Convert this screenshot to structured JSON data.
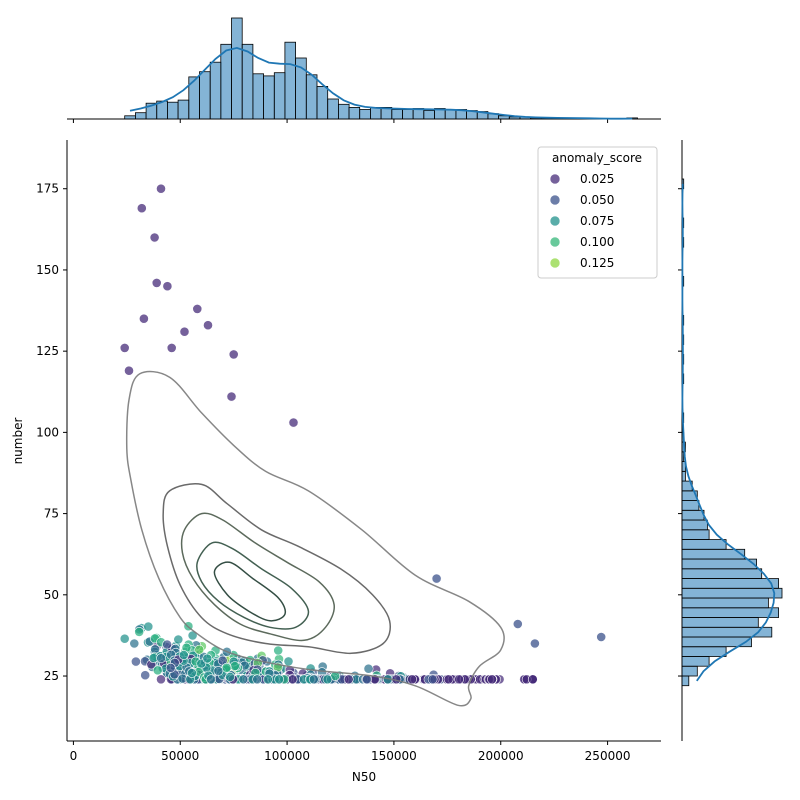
{
  "chart_data": {
    "type": "scatter",
    "xlabel": "N50",
    "ylabel": "number",
    "xlim": [
      -3000,
      275000
    ],
    "ylim": [
      5,
      190
    ],
    "x_ticks": [
      0,
      50000,
      100000,
      150000,
      200000,
      250000
    ],
    "x_tick_labels": [
      "0",
      "50000",
      "100000",
      "150000",
      "200000",
      "250000"
    ],
    "y_ticks": [
      25,
      50,
      75,
      100,
      125,
      150,
      175
    ],
    "y_tick_labels": [
      "25",
      "50",
      "75",
      "100",
      "125",
      "150",
      "175"
    ],
    "grid": false,
    "legend": {
      "title": "anomaly_score",
      "placement": "top-right",
      "entries": [
        {
          "label": "0.025",
          "color": "#472c7a"
        },
        {
          "label": "0.050",
          "color": "#3b528b"
        },
        {
          "label": "0.075",
          "color": "#21918c"
        },
        {
          "label": "0.100",
          "color": "#35b779"
        },
        {
          "label": "0.125",
          "color": "#90d743"
        }
      ]
    },
    "colormap": "viridis",
    "marginal_x_histogram": {
      "bin_edges_start": 24000,
      "bin_width": 5000,
      "counts": [
        3,
        6,
        15,
        17,
        16,
        18,
        40,
        45,
        54,
        71,
        96,
        71,
        43,
        41,
        44,
        73,
        58,
        42,
        31,
        19,
        14,
        11,
        9,
        11,
        11,
        9,
        9,
        10,
        8,
        10,
        9,
        9,
        8,
        7,
        5,
        3,
        2,
        2,
        1,
        1,
        1,
        1,
        1,
        1,
        0,
        0,
        0,
        1
      ]
    },
    "marginal_y_histogram": {
      "bin_edges_start": 22,
      "bin_width": 3,
      "counts": [
        4,
        9,
        16,
        26,
        41,
        53,
        45,
        57,
        51,
        59,
        57,
        47,
        44,
        37,
        26,
        16,
        15,
        13,
        10,
        9,
        6,
        2,
        2,
        1,
        2,
        1,
        0,
        1,
        0,
        0,
        0,
        1,
        0,
        1,
        0,
        1,
        0,
        1,
        0,
        0,
        0,
        1,
        0,
        0,
        0,
        1,
        0,
        1,
        0,
        0,
        0,
        1
      ]
    },
    "kde_contours": [
      {
        "level": 1,
        "points": [
          [
            26000,
            110
          ],
          [
            31000,
            118
          ],
          [
            45000,
            117
          ],
          [
            60000,
            106
          ],
          [
            75000,
            96
          ],
          [
            90000,
            88
          ],
          [
            110000,
            82
          ],
          [
            135000,
            70
          ],
          [
            160000,
            56
          ],
          [
            185000,
            48
          ],
          [
            200000,
            40
          ],
          [
            200000,
            33
          ],
          [
            190000,
            28
          ],
          [
            185000,
            22
          ],
          [
            186000,
            18
          ],
          [
            180000,
            16
          ],
          [
            160000,
            22
          ],
          [
            140000,
            25
          ],
          [
            110000,
            27
          ],
          [
            85000,
            30
          ],
          [
            70000,
            33
          ],
          [
            58000,
            38
          ],
          [
            50000,
            43
          ],
          [
            40000,
            55
          ],
          [
            32000,
            70
          ],
          [
            27000,
            85
          ],
          [
            25000,
            95
          ]
        ]
      },
      {
        "level": 2,
        "points": [
          [
            45000,
            82
          ],
          [
            60000,
            84
          ],
          [
            72000,
            78
          ],
          [
            88000,
            70
          ],
          [
            105000,
            65
          ],
          [
            125000,
            58
          ],
          [
            140000,
            50
          ],
          [
            148000,
            42
          ],
          [
            145000,
            35
          ],
          [
            130000,
            32
          ],
          [
            110000,
            34
          ],
          [
            90000,
            35
          ],
          [
            72000,
            38
          ],
          [
            60000,
            43
          ],
          [
            50000,
            53
          ],
          [
            44000,
            65
          ],
          [
            42000,
            75
          ]
        ]
      },
      {
        "level": 3,
        "points": [
          [
            52000,
            70
          ],
          [
            60000,
            75
          ],
          [
            70000,
            73
          ],
          [
            85000,
            66
          ],
          [
            100000,
            60
          ],
          [
            115000,
            54
          ],
          [
            122000,
            47
          ],
          [
            118000,
            40
          ],
          [
            108000,
            36
          ],
          [
            92000,
            38
          ],
          [
            78000,
            41
          ],
          [
            66000,
            47
          ],
          [
            56000,
            55
          ],
          [
            51000,
            63
          ]
        ]
      },
      {
        "level": 4,
        "points": [
          [
            58000,
            60
          ],
          [
            65000,
            66
          ],
          [
            75000,
            64
          ],
          [
            88000,
            58
          ],
          [
            102000,
            52
          ],
          [
            110000,
            45
          ],
          [
            104000,
            40
          ],
          [
            92000,
            40
          ],
          [
            80000,
            43
          ],
          [
            68000,
            48
          ],
          [
            60000,
            54
          ]
        ]
      },
      {
        "level": 5,
        "points": [
          [
            66000,
            57
          ],
          [
            73000,
            60
          ],
          [
            84000,
            55
          ],
          [
            96000,
            49
          ],
          [
            99000,
            44
          ],
          [
            92000,
            42
          ],
          [
            82000,
            45
          ],
          [
            72000,
            50
          ]
        ]
      }
    ]
  }
}
